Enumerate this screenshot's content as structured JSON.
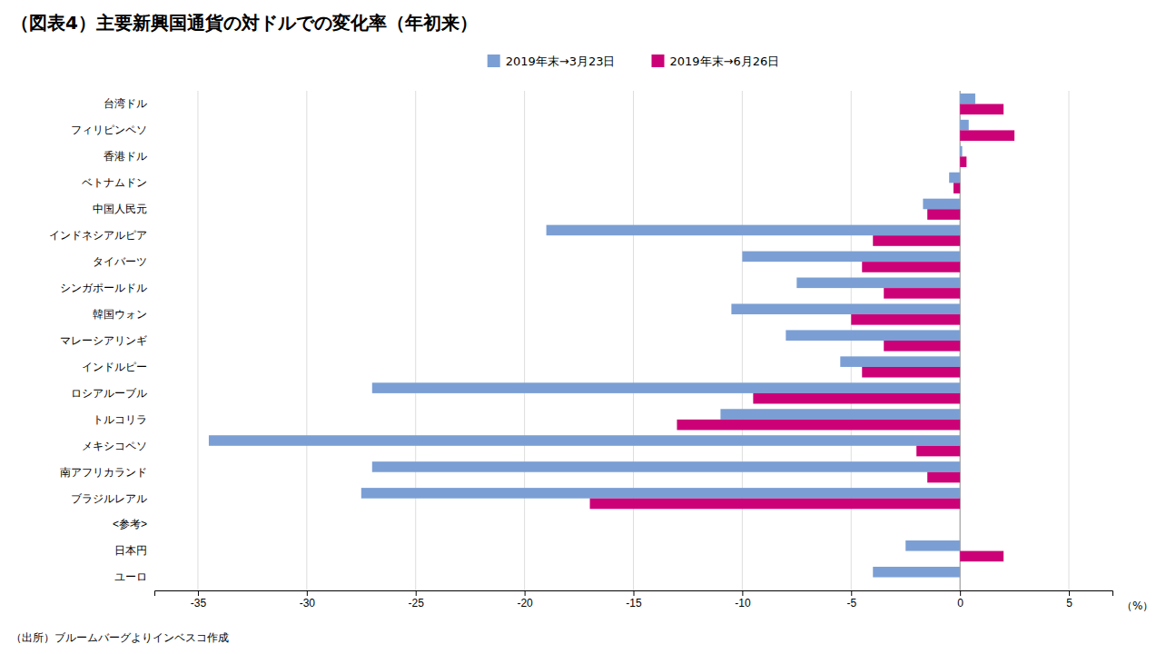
{
  "chart_data": {
    "type": "bar",
    "orientation": "horizontal",
    "title": "（図表4）主要新興国通貨の対ドルでの変化率（年初来）",
    "xlabel": "（%）",
    "source": "（出所）ブルームバーグよりインベスコ作成",
    "categories": [
      "台湾ドル",
      "フィリピンペソ",
      "香港ドル",
      "ベトナムドン",
      "中国人民元",
      "インドネシアルピア",
      "タイバーツ",
      "シンガポールドル",
      "韓国ウォン",
      "マレーシアリンギ",
      "インドルピー",
      "ロシアルーブル",
      "トルコリラ",
      "メキシコペソ",
      "南アフリカランド",
      "ブラジルレアル",
      "<参考>",
      "日本円",
      "ユーロ"
    ],
    "series": [
      {
        "name": "2019年末→3月23日",
        "color": "#7B9FD4",
        "values": [
          0.7,
          0.4,
          0.1,
          -0.5,
          -1.7,
          -19.0,
          -10.0,
          -7.5,
          -10.5,
          -8.0,
          -5.5,
          -27.0,
          -11.0,
          -34.5,
          -27.0,
          -27.5,
          null,
          -2.5,
          -4.0
        ]
      },
      {
        "name": "2019年末→6月26日",
        "color": "#CC0077",
        "values": [
          2.0,
          2.5,
          0.3,
          -0.3,
          -1.5,
          -4.0,
          -4.5,
          -3.5,
          -5.0,
          -3.5,
          -4.5,
          -9.5,
          -13.0,
          -2.0,
          -1.5,
          -17.0,
          null,
          2.0,
          null
        ]
      }
    ],
    "xlim": [
      -37,
      7
    ],
    "xticks": [
      -35,
      -30,
      -25,
      -20,
      -15,
      -10,
      -5,
      0,
      5
    ],
    "grid": true,
    "legend": "top"
  }
}
